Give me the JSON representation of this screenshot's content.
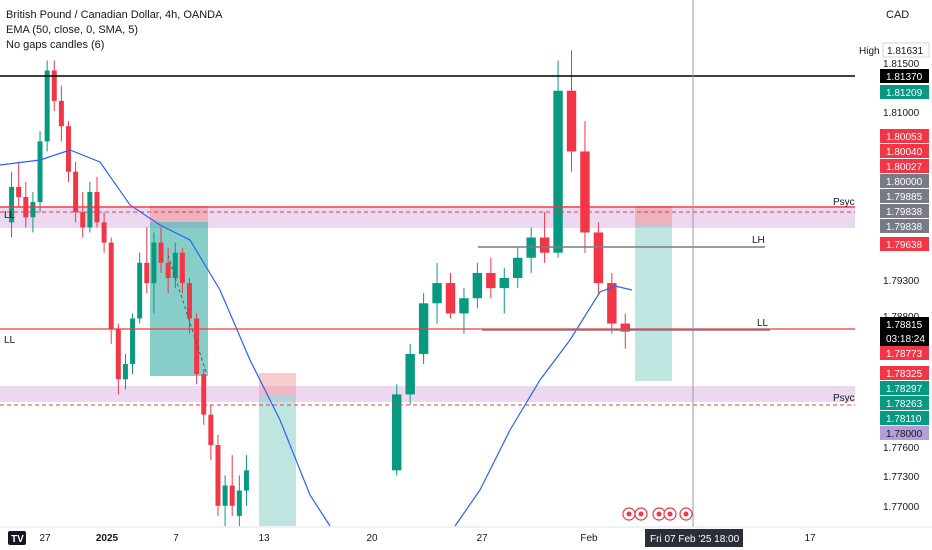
{
  "header": {
    "title": "British Pound / Canadian Dollar, 4h, OANDA",
    "indicator_ema": "EMA (50, close, 0, SMA, 5)",
    "indicator_gaps": "No gaps candles (6)",
    "currency": "CAD"
  },
  "chart_data": {
    "type": "candlestick",
    "title": "British Pound / Canadian Dollar, 4h, OANDA",
    "ylim": [
      1.769,
      1.818
    ],
    "x_ticks": [
      "27",
      "2025",
      "7",
      "13",
      "20",
      "27",
      "Feb",
      "17"
    ],
    "crosshair_date": "Fri 07 Feb '25",
    "crosshair_time": "18:00",
    "y_ticks": [
      "1.81500",
      "1.81000",
      "1.79300",
      "1.78800",
      "1.77600",
      "1.77300",
      "1.77000"
    ],
    "price_tags": [
      {
        "label": "High",
        "value": "1.81631",
        "color": "#ffffff"
      },
      {
        "value": "1.81370",
        "color": "#000000"
      },
      {
        "value": "1.81209",
        "color": "#089981"
      },
      {
        "value": "1.80053",
        "color": "#f23645"
      },
      {
        "value": "1.80040",
        "color": "#f23645"
      },
      {
        "value": "1.80027",
        "color": "#f23645"
      },
      {
        "value": "1.80000",
        "color": "#787b86"
      },
      {
        "value": "1.79885",
        "color": "#787b86"
      },
      {
        "value": "1.79838",
        "color": "#787b86"
      },
      {
        "value": "1.79838",
        "color": "#787b86"
      },
      {
        "value": "1.79638",
        "color": "#f23645"
      },
      {
        "value": "1.78815",
        "color": "#000000",
        "countdown": "03:18:24"
      },
      {
        "value": "1.78773",
        "color": "#f23645"
      },
      {
        "value": "1.78325",
        "color": "#f23645"
      },
      {
        "value": "1.78297",
        "color": "#089981"
      },
      {
        "value": "1.78263",
        "color": "#089981"
      },
      {
        "value": "1.78110",
        "color": "#089981"
      },
      {
        "value": "1.78000",
        "color": "#b39ddb"
      }
    ],
    "horizontal_lines": [
      {
        "value": 1.8137,
        "color": "#000000",
        "label": "LH"
      },
      {
        "value": 1.7988,
        "color": "#f23645",
        "label": "Psych level"
      },
      {
        "value": 1.7878,
        "color": "#f23645",
        "label": "LL"
      }
    ],
    "annotations": [
      "LH",
      "LL",
      "Psych level",
      "Psych level",
      "LH",
      "LL",
      "LL"
    ],
    "candles": [
      [
        1.799,
        1.804,
        1.7975,
        1.8025
      ],
      [
        1.8025,
        1.805,
        1.8005,
        1.8015
      ],
      [
        1.8015,
        1.803,
        1.7985,
        1.7995
      ],
      [
        1.7995,
        1.802,
        1.798,
        1.801
      ],
      [
        1.801,
        1.808,
        1.8,
        1.807
      ],
      [
        1.807,
        1.815,
        1.806,
        1.814
      ],
      [
        1.814,
        1.815,
        1.81,
        1.811
      ],
      [
        1.811,
        1.8125,
        1.807,
        1.8085
      ],
      [
        1.8085,
        1.809,
        1.803,
        1.804
      ],
      [
        1.804,
        1.805,
        1.799,
        1.8
      ],
      [
        1.8,
        1.802,
        1.7975,
        1.7985
      ],
      [
        1.7985,
        1.803,
        1.798,
        1.802
      ],
      [
        1.802,
        1.8035,
        1.7985,
        1.799
      ],
      [
        1.799,
        1.8,
        1.796,
        1.797
      ],
      [
        1.797,
        1.7975,
        1.787,
        1.7885
      ],
      [
        1.7885,
        1.789,
        1.782,
        1.7835
      ],
      [
        1.7835,
        1.786,
        1.7825,
        1.785
      ],
      [
        1.785,
        1.79,
        1.784,
        1.7895
      ],
      [
        1.7895,
        1.796,
        1.789,
        1.795
      ],
      [
        1.795,
        1.7985,
        1.792,
        1.793
      ],
      [
        1.793,
        1.798,
        1.79,
        1.797
      ],
      [
        1.797,
        1.7985,
        1.794,
        1.795
      ],
      [
        1.795,
        1.7965,
        1.792,
        1.7935
      ],
      [
        1.7935,
        1.797,
        1.7925,
        1.796
      ],
      [
        1.796,
        1.7965,
        1.792,
        1.793
      ],
      [
        1.793,
        1.7935,
        1.788,
        1.7895
      ],
      [
        1.7895,
        1.79,
        1.783,
        1.784
      ],
      [
        1.784,
        1.7845,
        1.779,
        1.78
      ],
      [
        1.78,
        1.781,
        1.7755,
        1.777
      ],
      [
        1.777,
        1.778,
        1.77,
        1.771
      ],
      [
        1.771,
        1.774,
        1.769,
        1.773
      ],
      [
        1.773,
        1.776,
        1.77,
        1.771
      ],
      [
        1.77,
        1.774,
        1.769,
        1.7725
      ],
      [
        1.7725,
        1.776,
        1.771,
        1.7745
      ],
      [
        1.7745,
        1.783,
        1.774,
        1.782
      ],
      [
        1.782,
        1.787,
        1.781,
        1.786
      ],
      [
        1.786,
        1.792,
        1.785,
        1.791
      ],
      [
        1.791,
        1.795,
        1.789,
        1.793
      ],
      [
        1.793,
        1.794,
        1.7895,
        1.79
      ],
      [
        1.79,
        1.7925,
        1.788,
        1.7915
      ],
      [
        1.7915,
        1.795,
        1.7905,
        1.794
      ],
      [
        1.794,
        1.7955,
        1.7915,
        1.7925
      ],
      [
        1.7925,
        1.7945,
        1.79,
        1.7935
      ],
      [
        1.7935,
        1.7965,
        1.7925,
        1.7955
      ],
      [
        1.7955,
        1.7985,
        1.794,
        1.7975
      ],
      [
        1.7975,
        1.8,
        1.795,
        1.796
      ],
      [
        1.796,
        1.815,
        1.7955,
        1.812
      ],
      [
        1.812,
        1.816,
        1.804,
        1.806
      ],
      [
        1.806,
        1.809,
        1.796,
        1.798
      ],
      [
        1.798,
        1.799,
        1.792,
        1.793
      ],
      [
        1.793,
        1.794,
        1.788,
        1.789
      ],
      [
        1.789,
        1.79,
        1.7865,
        1.7882
      ]
    ]
  },
  "footer": {
    "tv_logo": "TV",
    "event_icons": [
      "event-1",
      "event-2",
      "event-3",
      "event-4",
      "event-5"
    ]
  }
}
